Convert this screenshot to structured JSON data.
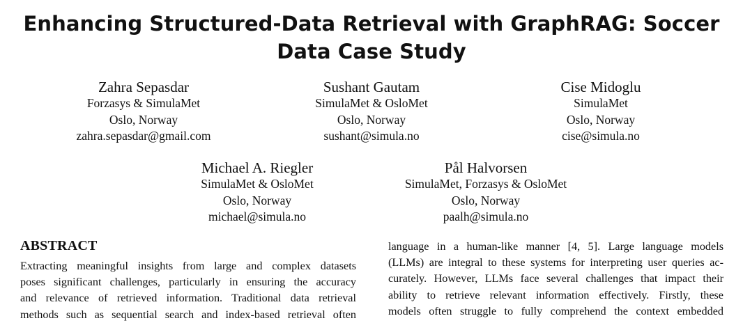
{
  "paper": {
    "title_line1": "Enhancing Structured-Data Retrieval with GraphRAG: Soccer",
    "title_line2": "Data Case Study",
    "authors": [
      {
        "name": "Zahra Sepasdar",
        "affiliation": "Forzasys & SimulaMet",
        "location": "Oslo, Norway",
        "email": "zahra.sepasdar@gmail.com"
      },
      {
        "name": "Sushant Gautam",
        "affiliation": "SimulaMet & OsloMet",
        "location": "Oslo, Norway",
        "email": "sushant@simula.no"
      },
      {
        "name": "Cise Midoglu",
        "affiliation": "SimulaMet",
        "location": "Oslo, Norway",
        "email": "cise@simula.no"
      },
      {
        "name": "Michael A. Riegler",
        "affiliation": "SimulaMet & OsloMet",
        "location": "Oslo, Norway",
        "email": "michael@simula.no"
      },
      {
        "name": "Pål Halvorsen",
        "affiliation": "SimulaMet, Forzasys & OsloMet",
        "location": "Oslo, Norway",
        "email": "paalh@simula.no"
      }
    ],
    "abstract_heading": "ABSTRACT",
    "abstract_lines": [
      "Extracting meaningful insights from large and complex datasets",
      "poses significant challenges, particularly in ensuring the accuracy",
      "and relevance of retrieved information. Traditional data retrieval",
      "methods such as sequential search and index-based retrieval often"
    ],
    "right_column_lines": [
      "language in a human-like manner [4, 5]. Large language models",
      "(LLMs) are integral to these systems for interpreting user queries ac-",
      "curately. However, LLMs face several challenges that impact their",
      "ability to retrieve relevant information effectively. Firstly, these",
      "models often struggle to fully comprehend the context embedded"
    ]
  }
}
